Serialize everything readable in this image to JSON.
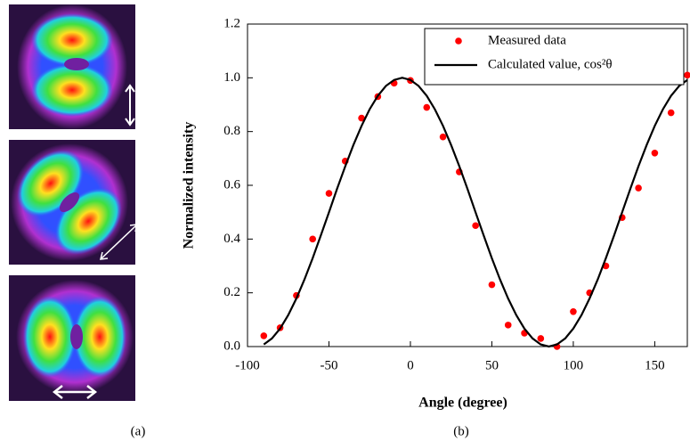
{
  "figure": {
    "panel_labels": [
      "(a)",
      "(b)"
    ]
  },
  "chart_data": {
    "type": "scatter-line",
    "x_label": "Angle (degree)",
    "y_label": "Normalized intensity",
    "xlim": [
      -100,
      170
    ],
    "xticks": [
      -100,
      -50,
      0,
      50,
      100,
      150
    ],
    "ylim": [
      0,
      1.2
    ],
    "yticks": [
      {
        "value": 0,
        "label": "0.0"
      },
      0.2,
      0.4,
      0.6,
      0.8,
      {
        "value": 1,
        "label": "1.0"
      },
      1.2
    ],
    "legend": "top-right",
    "series": [
      {
        "name": "Measured data",
        "kind": "scatter",
        "color": "#ff0000",
        "x": [
          -90,
          -80,
          -70,
          -60,
          -50,
          -40,
          -30,
          -20,
          -10,
          0,
          10,
          20,
          30,
          40,
          50,
          60,
          70,
          80,
          90,
          100,
          110,
          120,
          130,
          140,
          150,
          160,
          170
        ],
        "values": [
          0.04,
          0.07,
          0.19,
          0.4,
          0.57,
          0.69,
          0.85,
          0.93,
          0.98,
          0.99,
          0.89,
          0.78,
          0.65,
          0.45,
          0.23,
          0.08,
          0.05,
          0.03,
          0.0,
          0.13,
          0.2,
          0.3,
          0.48,
          0.59,
          0.72,
          0.87,
          1.01
        ]
      },
      {
        "name": "Calculated value, cos²θ",
        "kind": "line",
        "color": "#000000",
        "x": [
          -90,
          -85,
          -80,
          -75,
          -70,
          -65,
          -60,
          -55,
          -50,
          -45,
          -40,
          -35,
          -30,
          -25,
          -20,
          -15,
          -10,
          -5,
          0,
          5,
          10,
          15,
          20,
          25,
          30,
          35,
          40,
          45,
          50,
          55,
          60,
          65,
          70,
          75,
          80,
          85,
          90,
          95,
          100,
          105,
          110,
          115,
          120,
          125,
          130,
          135,
          140,
          145,
          150,
          155,
          160,
          165,
          170
        ],
        "values": [
          0.008,
          0.03,
          0.067,
          0.117,
          0.179,
          0.25,
          0.329,
          0.413,
          0.5,
          0.587,
          0.671,
          0.75,
          0.821,
          0.883,
          0.933,
          0.97,
          0.992,
          1.0,
          0.992,
          0.97,
          0.933,
          0.883,
          0.821,
          0.75,
          0.671,
          0.587,
          0.5,
          0.413,
          0.329,
          0.25,
          0.179,
          0.117,
          0.067,
          0.03,
          0.008,
          0,
          0.008,
          0.03,
          0.067,
          0.117,
          0.179,
          0.25,
          0.329,
          0.413,
          0.5,
          0.587,
          0.671,
          0.75,
          0.821,
          0.883,
          0.933,
          0.97,
          0.992
        ]
      }
    ]
  }
}
